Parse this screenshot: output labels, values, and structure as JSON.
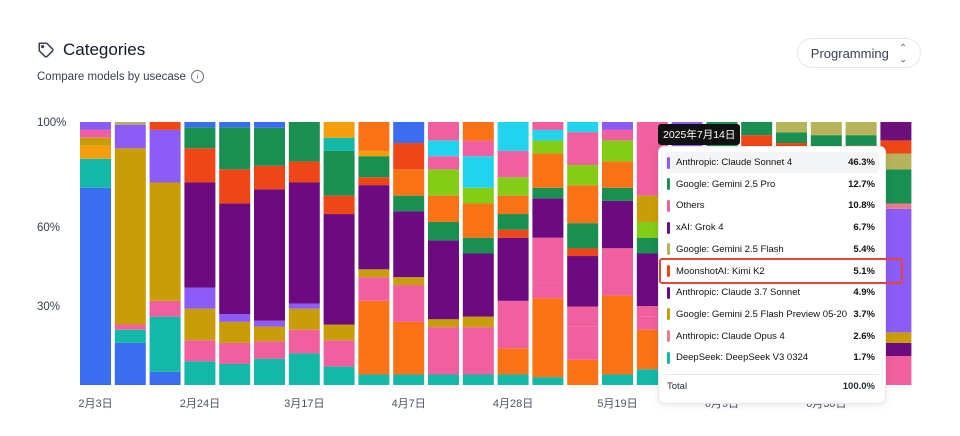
{
  "header": {
    "title": "Categories",
    "subtitle": "Compare models by usecase",
    "tag_icon": "tag-icon",
    "info_icon": "info-icon"
  },
  "usecase_select": {
    "value": "Programming",
    "icon": "chevron-updown-icon"
  },
  "tooltip": {
    "date": "2025年7月14日",
    "rows": [
      {
        "name": "Anthropic: Claude Sonnet 4",
        "pct": "46.3%",
        "color": "#8b5cf6"
      },
      {
        "name": "Google: Gemini 2.5 Pro",
        "pct": "12.7%",
        "color": "#1a8f52"
      },
      {
        "name": "Others",
        "pct": "10.8%",
        "color": "#f0609e"
      },
      {
        "name": "xAI: Grok 4",
        "pct": "6.7%",
        "color": "#6b0f7a"
      },
      {
        "name": "Google: Gemini 2.5 Flash",
        "pct": "5.4%",
        "color": "#b6b35a"
      },
      {
        "name": "MoonshotAI: Kimi K2",
        "pct": "5.1%",
        "color": "#ee4616"
      },
      {
        "name": "Anthropic: Claude 3.7 Sonnet",
        "pct": "4.9%",
        "color": "#6c0b80"
      },
      {
        "name": "Google: Gemini 2.5 Flash Preview 05-20",
        "pct": "3.7%",
        "color": "#c99d07"
      },
      {
        "name": "Anthropic: Claude Opus 4",
        "pct": "2.6%",
        "color": "#e77d8a"
      },
      {
        "name": "DeepSeek: DeepSeek V3 0324",
        "pct": "1.7%",
        "color": "#14b8a6"
      }
    ],
    "total_label": "Total",
    "total_pct": "100.0%"
  },
  "chart_data": {
    "type": "bar",
    "stacked": true,
    "yticks": [
      "100%",
      "60%",
      "30%"
    ],
    "ytick_values": [
      100,
      60,
      30
    ],
    "ylim": [
      0,
      100
    ],
    "xtick_labels": [
      "2月3日",
      "2月24日",
      "3月17日",
      "4月7日",
      "4月28日",
      "5月19日",
      "6月9日",
      "6月30日"
    ],
    "xtick_bar_index": [
      0,
      3,
      6,
      9,
      12,
      15,
      18,
      21
    ],
    "bar_count": 24,
    "bars": [
      [
        {
          "c": "#3b6df0",
          "v": 75
        },
        {
          "c": "#14b8a6",
          "v": 11
        },
        {
          "c": "#f59e0b",
          "v": 5
        },
        {
          "c": "#c99d07",
          "v": 3
        },
        {
          "c": "#f0609e",
          "v": 3
        },
        {
          "c": "#8b5cf6",
          "v": 3
        }
      ],
      [
        {
          "c": "#3b6df0",
          "v": 16
        },
        {
          "c": "#14b8a6",
          "v": 5
        },
        {
          "c": "#f0609e",
          "v": 2
        },
        {
          "c": "#c99d07",
          "v": 67
        },
        {
          "c": "#8b5cf6",
          "v": 9
        },
        {
          "c": "#b6b35a",
          "v": 1
        }
      ],
      [
        {
          "c": "#3b6df0",
          "v": 5
        },
        {
          "c": "#14b8a6",
          "v": 21
        },
        {
          "c": "#f0609e",
          "v": 6
        },
        {
          "c": "#c99d07",
          "v": 45
        },
        {
          "c": "#8b5cf6",
          "v": 20
        },
        {
          "c": "#ee4616",
          "v": 3
        }
      ],
      [
        {
          "c": "#14b8a6",
          "v": 9
        },
        {
          "c": "#f0609e",
          "v": 8
        },
        {
          "c": "#c99d07",
          "v": 12
        },
        {
          "c": "#8b5cf6",
          "v": 8
        },
        {
          "c": "#6c0b80",
          "v": 40
        },
        {
          "c": "#ee4616",
          "v": 13
        },
        {
          "c": "#1a8f52",
          "v": 8
        },
        {
          "c": "#3b6df0",
          "v": 2
        }
      ],
      [
        {
          "c": "#14b8a6",
          "v": 8
        },
        {
          "c": "#f0609e",
          "v": 8
        },
        {
          "c": "#c99d07",
          "v": 8
        },
        {
          "c": "#8b5cf6",
          "v": 3
        },
        {
          "c": "#6c0b80",
          "v": 42
        },
        {
          "c": "#ee4616",
          "v": 13
        },
        {
          "c": "#1a8f52",
          "v": 16
        },
        {
          "c": "#3b6df0",
          "v": 2
        }
      ],
      [
        {
          "c": "#14b8a6",
          "v": 9
        },
        {
          "c": "#f0609e",
          "v": 6
        },
        {
          "c": "#c99d07",
          "v": 5
        },
        {
          "c": "#8b5cf6",
          "v": 2
        },
        {
          "c": "#6c0b80",
          "v": 45
        },
        {
          "c": "#ee4616",
          "v": 8
        },
        {
          "c": "#1a8f52",
          "v": 13
        },
        {
          "c": "#3b6df0",
          "v": 2
        }
      ],
      [
        {
          "c": "#14b8a6",
          "v": 12
        },
        {
          "c": "#f0609e",
          "v": 9
        },
        {
          "c": "#c99d07",
          "v": 8
        },
        {
          "c": "#8b5cf6",
          "v": 2
        },
        {
          "c": "#6c0b80",
          "v": 46
        },
        {
          "c": "#ee4616",
          "v": 8
        },
        {
          "c": "#1a8f52",
          "v": 15
        }
      ],
      [
        {
          "c": "#14b8a6",
          "v": 7
        },
        {
          "c": "#f0609e",
          "v": 10
        },
        {
          "c": "#c99d07",
          "v": 6
        },
        {
          "c": "#6c0b80",
          "v": 42
        },
        {
          "c": "#ee4616",
          "v": 7
        },
        {
          "c": "#1a8f52",
          "v": 17
        },
        {
          "c": "#14b8a6",
          "v": 5
        },
        {
          "c": "#f59e0b",
          "v": 6
        }
      ],
      [
        {
          "c": "#14b8a6",
          "v": 4
        },
        {
          "c": "#f97316",
          "v": 28
        },
        {
          "c": "#f0609e",
          "v": 9
        },
        {
          "c": "#c99d07",
          "v": 3
        },
        {
          "c": "#6c0b80",
          "v": 32
        },
        {
          "c": "#ee4616",
          "v": 3
        },
        {
          "c": "#1a8f52",
          "v": 8
        },
        {
          "c": "#f59e0b",
          "v": 2
        },
        {
          "c": "#f97316",
          "v": 11
        }
      ],
      [
        {
          "c": "#14b8a6",
          "v": 4
        },
        {
          "c": "#f97316",
          "v": 20
        },
        {
          "c": "#f0609e",
          "v": 14
        },
        {
          "c": "#c99d07",
          "v": 3
        },
        {
          "c": "#6c0b80",
          "v": 25
        },
        {
          "c": "#1a8f52",
          "v": 6
        },
        {
          "c": "#f97316",
          "v": 10
        },
        {
          "c": "#ee4616",
          "v": 10
        },
        {
          "c": "#3b6df0",
          "v": 8
        }
      ],
      [
        {
          "c": "#14b8a6",
          "v": 4
        },
        {
          "c": "#f0609e",
          "v": 18
        },
        {
          "c": "#c99d07",
          "v": 3
        },
        {
          "c": "#6c0b80",
          "v": 30
        },
        {
          "c": "#1a8f52",
          "v": 7
        },
        {
          "c": "#f97316",
          "v": 10
        },
        {
          "c": "#84cc16",
          "v": 10
        },
        {
          "c": "#f0609e",
          "v": 5
        },
        {
          "c": "#22d3ee",
          "v": 6
        },
        {
          "c": "#f0609e",
          "v": 7
        }
      ],
      [
        {
          "c": "#14b8a6",
          "v": 4
        },
        {
          "c": "#f0609e",
          "v": 18
        },
        {
          "c": "#c99d07",
          "v": 4
        },
        {
          "c": "#6c0b80",
          "v": 24
        },
        {
          "c": "#1a8f52",
          "v": 6
        },
        {
          "c": "#f97316",
          "v": 13
        },
        {
          "c": "#84cc16",
          "v": 6
        },
        {
          "c": "#22d3ee",
          "v": 12
        },
        {
          "c": "#f0609e",
          "v": 6
        },
        {
          "c": "#f97316",
          "v": 7
        }
      ],
      [
        {
          "c": "#14b8a6",
          "v": 4
        },
        {
          "c": "#f97316",
          "v": 10
        },
        {
          "c": "#f0609e",
          "v": 18
        },
        {
          "c": "#6c0b80",
          "v": 24
        },
        {
          "c": "#ee4616",
          "v": 3
        },
        {
          "c": "#1a8f52",
          "v": 6
        },
        {
          "c": "#f97316",
          "v": 7
        },
        {
          "c": "#84cc16",
          "v": 7
        },
        {
          "c": "#f0609e",
          "v": 10
        },
        {
          "c": "#22d3ee",
          "v": 11
        }
      ],
      [
        {
          "c": "#14b8a6",
          "v": 3
        },
        {
          "c": "#f97316",
          "v": 30
        },
        {
          "c": "#f0609e",
          "v": 6
        },
        {
          "c": "#f0609e",
          "v": 17
        },
        {
          "c": "#6c0b80",
          "v": 15
        },
        {
          "c": "#1a8f52",
          "v": 4
        },
        {
          "c": "#f97316",
          "v": 13
        },
        {
          "c": "#84cc16",
          "v": 5
        },
        {
          "c": "#22d3ee",
          "v": 4
        },
        {
          "c": "#f0609e",
          "v": 3
        }
      ],
      [
        {
          "c": "#f97316",
          "v": 10
        },
        {
          "c": "#f0609e",
          "v": 13
        },
        {
          "c": "#f0609e",
          "v": 8
        },
        {
          "c": "#6c0b80",
          "v": 20
        },
        {
          "c": "#ee4616",
          "v": 3
        },
        {
          "c": "#1a8f52",
          "v": 10
        },
        {
          "c": "#f97316",
          "v": 15
        },
        {
          "c": "#84cc16",
          "v": 8
        },
        {
          "c": "#f0609e",
          "v": 13
        },
        {
          "c": "#22d3ee",
          "v": 4
        }
      ],
      [
        {
          "c": "#14b8a6",
          "v": 4
        },
        {
          "c": "#f97316",
          "v": 30
        },
        {
          "c": "#f0609e",
          "v": 18
        },
        {
          "c": "#6c0b80",
          "v": 18
        },
        {
          "c": "#1a8f52",
          "v": 5
        },
        {
          "c": "#f97316",
          "v": 10
        },
        {
          "c": "#84cc16",
          "v": 8
        },
        {
          "c": "#f0609e",
          "v": 4
        },
        {
          "c": "#8b5cf6",
          "v": 3
        }
      ],
      [
        {
          "c": "#14b8a6",
          "v": 6
        },
        {
          "c": "#f97316",
          "v": 15
        },
        {
          "c": "#f0609e",
          "v": 5
        },
        {
          "c": "#f0609e",
          "v": 4
        },
        {
          "c": "#6c0b80",
          "v": 20
        },
        {
          "c": "#1a8f52",
          "v": 6
        },
        {
          "c": "#84cc16",
          "v": 6
        },
        {
          "c": "#c99d07",
          "v": 10
        },
        {
          "c": "#f0609e",
          "v": 28
        }
      ],
      [
        {
          "c": "#14b8a6",
          "v": 5
        },
        {
          "c": "#f0609e",
          "v": 10
        },
        {
          "c": "#6c0b80",
          "v": 14
        },
        {
          "c": "#ee4616",
          "v": 4
        },
        {
          "c": "#1a8f52",
          "v": 9
        },
        {
          "c": "#84cc16",
          "v": 8
        },
        {
          "c": "#c99d07",
          "v": 7
        },
        {
          "c": "#8b5cf6",
          "v": 43
        }
      ],
      [
        {
          "c": "#8b5cf6",
          "v": 46
        },
        {
          "c": "#6c0b80",
          "v": 5
        },
        {
          "c": "#c99d07",
          "v": 4
        },
        {
          "c": "#e77d8a",
          "v": 3
        },
        {
          "c": "#14b8a6",
          "v": 2
        },
        {
          "c": "#ee4616",
          "v": 5
        },
        {
          "c": "#b6b35a",
          "v": 5
        },
        {
          "c": "#6b0f7a",
          "v": 7
        },
        {
          "c": "#f0609e",
          "v": 11
        },
        {
          "c": "#1a8f52",
          "v": 12
        }
      ],
      [
        {
          "c": "#8b5cf6",
          "v": 55
        },
        {
          "c": "#6c0b80",
          "v": 4
        },
        {
          "c": "#f0609e",
          "v": 10
        },
        {
          "c": "#1a8f52",
          "v": 15
        },
        {
          "c": "#b6b35a",
          "v": 6
        },
        {
          "c": "#ee4616",
          "v": 5
        },
        {
          "c": "#1a8f52",
          "v": 5
        }
      ],
      [
        {
          "c": "#8b5cf6",
          "v": 55
        },
        {
          "c": "#f0609e",
          "v": 12
        },
        {
          "c": "#1a8f52",
          "v": 13
        },
        {
          "c": "#b6b35a",
          "v": 8
        },
        {
          "c": "#ee4616",
          "v": 4
        },
        {
          "c": "#1a8f52",
          "v": 4
        },
        {
          "c": "#b6b35a",
          "v": 4
        }
      ],
      [
        {
          "c": "#8b5cf6",
          "v": 55
        },
        {
          "c": "#f0609e",
          "v": 12
        },
        {
          "c": "#1a8f52",
          "v": 13
        },
        {
          "c": "#b6b35a",
          "v": 6
        },
        {
          "c": "#ee4616",
          "v": 4
        },
        {
          "c": "#1a8f52",
          "v": 5
        },
        {
          "c": "#b6b35a",
          "v": 5
        }
      ],
      [
        {
          "c": "#8b5cf6",
          "v": 55
        },
        {
          "c": "#f0609e",
          "v": 12
        },
        {
          "c": "#1a8f52",
          "v": 13
        },
        {
          "c": "#b6b35a",
          "v": 7
        },
        {
          "c": "#ee4616",
          "v": 4
        },
        {
          "c": "#1a8f52",
          "v": 4
        },
        {
          "c": "#b6b35a",
          "v": 5
        }
      ],
      [
        {
          "c": "#f0609e",
          "v": 11
        },
        {
          "c": "#6c0b80",
          "v": 5
        },
        {
          "c": "#c99d07",
          "v": 4
        },
        {
          "c": "#8b5cf6",
          "v": 47
        },
        {
          "c": "#e77d8a",
          "v": 2
        },
        {
          "c": "#1a8f52",
          "v": 13
        },
        {
          "c": "#b6b35a",
          "v": 6
        },
        {
          "c": "#ee4616",
          "v": 5
        },
        {
          "c": "#6b0f7a",
          "v": 7
        }
      ]
    ]
  }
}
